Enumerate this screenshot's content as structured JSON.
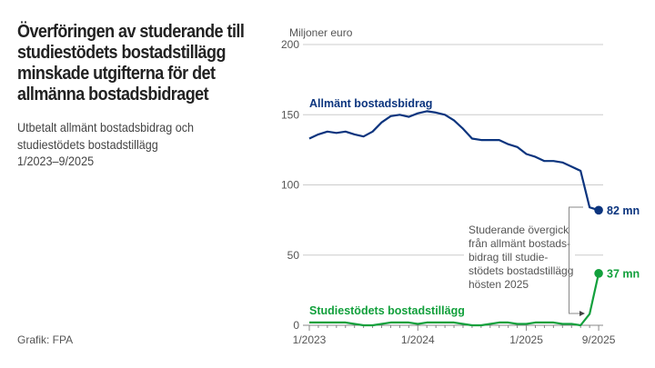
{
  "header": {
    "title_lines": [
      "Överföringen av studerande till",
      "studiestödets bostadstillägg",
      "minskade utgifterna för det",
      "allmänna bostadsbidraget"
    ],
    "subtitle_lines": [
      "Utbetalt allmänt bostadsbidrag och",
      "studiestödets bostadstillägg",
      "1/2023–9/2025"
    ]
  },
  "source": "Grafik: FPA",
  "annotation": {
    "lines": [
      "Studerande övergick",
      "från allmänt bostads-",
      "bidrag till studie-",
      "stödets bostadstillägg",
      "hösten 2025"
    ]
  },
  "chart_data": {
    "type": "line",
    "ylabel": "Miljoner euro",
    "ylim": [
      0,
      200
    ],
    "yticks": [
      0,
      50,
      100,
      150,
      200
    ],
    "x_start": "1/2023",
    "x_end": "9/2025",
    "xticks": [
      {
        "label": "1/2023",
        "index": 0
      },
      {
        "label": "1/2024",
        "index": 12
      },
      {
        "label": "1/2025",
        "index": 24
      },
      {
        "label": "9/2025",
        "index": 32
      }
    ],
    "grid": true,
    "series": [
      {
        "name": "Allmänt bostadsbidrag",
        "color": "#0b347e",
        "end_label": "82 mn",
        "values": [
          133,
          136,
          138,
          137,
          138,
          136,
          134.5,
          138,
          144.5,
          149,
          150,
          148.5,
          151,
          152.5,
          151.5,
          150,
          146,
          140,
          133,
          132,
          132,
          132,
          129,
          127,
          122,
          120,
          117,
          117,
          116,
          113,
          110,
          84,
          82
        ]
      },
      {
        "name": "Studiestödets bostadstillägg",
        "color": "#12a03c",
        "end_label": "37 mn",
        "values": [
          2,
          2,
          2,
          2,
          2,
          1,
          0,
          0,
          1,
          2,
          2,
          2,
          1,
          2,
          2,
          2,
          2,
          1,
          0,
          0,
          1,
          2,
          2,
          1,
          1,
          2,
          2,
          2,
          1,
          1,
          0,
          8,
          37
        ]
      }
    ]
  }
}
